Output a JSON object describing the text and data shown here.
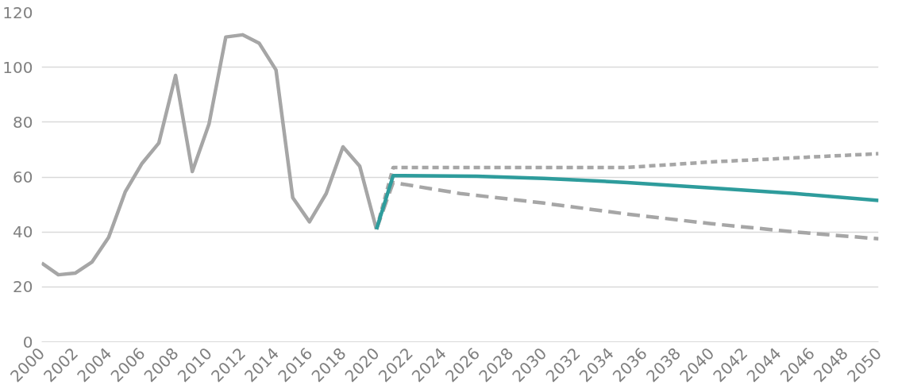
{
  "chart_data": {
    "type": "line",
    "xlim": [
      2000,
      2050
    ],
    "xticks": [
      2000,
      2002,
      2004,
      2006,
      2008,
      2010,
      2012,
      2014,
      2016,
      2018,
      2020,
      2022,
      2024,
      2026,
      2028,
      2030,
      2032,
      2034,
      2036,
      2038,
      2040,
      2042,
      2044,
      2046,
      2048,
      2050
    ],
    "ylim": [
      0,
      120
    ],
    "yticks": [
      0,
      20,
      40,
      60,
      80,
      100,
      120
    ],
    "grid": "y",
    "series": [
      {
        "color": "#a6a6a6",
        "line_style": "solid",
        "x": [
          2000,
          2001,
          2002,
          2003,
          2004,
          2005,
          2006,
          2007,
          2008,
          2009,
          2010,
          2011,
          2012,
          2013,
          2014,
          2015,
          2016,
          2017,
          2018,
          2019,
          2020
        ],
        "values": [
          28.7,
          24.4,
          25,
          29,
          38,
          54.7,
          65,
          72.4,
          97,
          62,
          79.4,
          111,
          111.8,
          108.7,
          99,
          52.5,
          43.7,
          54,
          71,
          64,
          41
        ]
      },
      {
        "color": "#a6a6a6",
        "line_style": "dotted",
        "x": [
          2020,
          2021,
          2025,
          2030,
          2035,
          2040,
          2045,
          2050
        ],
        "values": [
          41,
          63.5,
          63.5,
          63.5,
          63.5,
          65.5,
          67,
          68.5
        ]
      },
      {
        "color": "#a6a6a6",
        "line_style": "dashed",
        "x": [
          2020,
          2021,
          2025,
          2030,
          2035,
          2040,
          2045,
          2050
        ],
        "values": [
          41,
          58,
          54,
          50.5,
          46.5,
          43,
          40,
          37.5
        ]
      },
      {
        "color": "#2e9c9c",
        "line_style": "solid",
        "x": [
          2020,
          2021,
          2026,
          2030,
          2035,
          2040,
          2045,
          2050
        ],
        "values": [
          41,
          60.5,
          60.3,
          59.5,
          58,
          56,
          54,
          51.5
        ]
      }
    ]
  }
}
